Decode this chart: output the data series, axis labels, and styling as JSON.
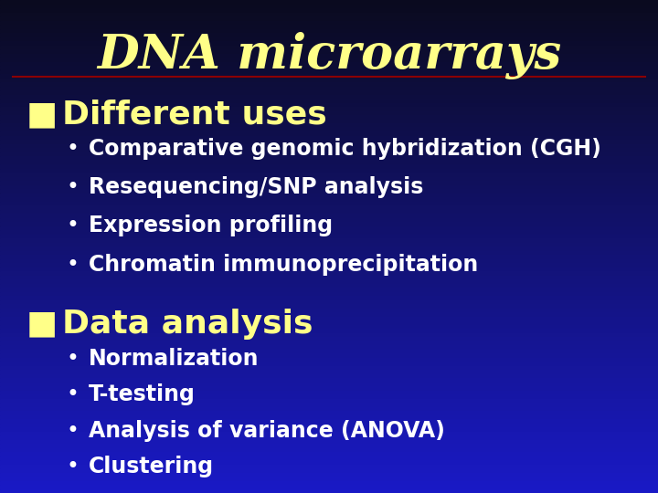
{
  "title": "DNA microarrays",
  "title_color": "#FFFF88",
  "title_fontsize": 38,
  "separator_color": "#8B0000",
  "section1_bullets": [
    "Comparative genomic hybridization (CGH)",
    "Resequencing/SNP analysis",
    "Expression profiling",
    "Chromatin immunoprecipitation"
  ],
  "section2_bullets": [
    "Normalization",
    "T-testing",
    "Analysis of variance (ANOVA)",
    "Clustering"
  ],
  "header_color": "#FFFF88",
  "bullet_color": "#FFFFFF",
  "header_fontsize": 26,
  "bullet_fontsize": 17,
  "bullet_marker": "•",
  "section_marker": "■",
  "section1_label": "Different uses",
  "section2_label": "Data analysis"
}
